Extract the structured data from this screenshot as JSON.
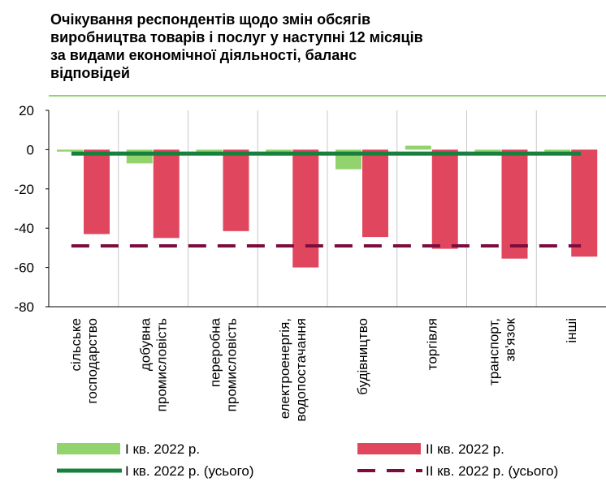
{
  "chart_data": {
    "type": "bar",
    "title": [
      "Очікування респондентів щодо змін обсягів",
      "виробництва товарів і послуг у наступні 12 місяців",
      "за видами економічної діяльності, баланс",
      "відповідей"
    ],
    "categories": [
      [
        "сільське",
        "господарство"
      ],
      [
        "добувна",
        "промисловість"
      ],
      [
        "переробна",
        "промисловість"
      ],
      [
        "електроенергія,",
        "водопостачання"
      ],
      [
        "будівництво"
      ],
      [
        "торгівля"
      ],
      [
        "транспорт,",
        "зв'язок"
      ],
      [
        "інші"
      ]
    ],
    "series": [
      {
        "name": "I кв. 2022 р.",
        "type": "bar",
        "color": "#92d36e",
        "values": [
          -1,
          -7,
          -1,
          -3,
          -10,
          2,
          -1,
          -1
        ]
      },
      {
        "name": "II кв. 2022 р.",
        "type": "bar",
        "color": "#e0475e",
        "values": [
          -43,
          -45,
          -41.5,
          -60,
          -44.5,
          -50.5,
          -55.5,
          -54.5
        ]
      },
      {
        "name": "I кв. 2022 р. (усього)",
        "type": "line",
        "color": "#17803d",
        "value": -2
      },
      {
        "name": "II кв. 2022 р. (усього)",
        "type": "line",
        "dashed": true,
        "color": "#7b0c3d",
        "value": -49
      }
    ],
    "ylim": [
      -80,
      20
    ],
    "yticks": [
      -80,
      -60,
      -40,
      -20,
      0,
      20
    ]
  }
}
